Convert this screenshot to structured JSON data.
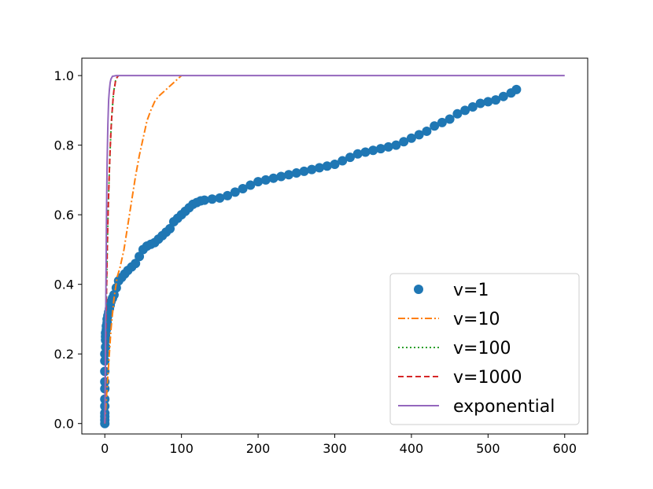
{
  "chart_data": {
    "type": "scatter",
    "title": "",
    "xlabel": "",
    "ylabel": "",
    "xlim": [
      -30,
      630
    ],
    "ylim": [
      -0.03,
      1.05
    ],
    "xticks": [
      0,
      100,
      200,
      300,
      400,
      500,
      600
    ],
    "xtick_labels": [
      "0",
      "100",
      "200",
      "300",
      "400",
      "500",
      "600"
    ],
    "yticks": [
      0.0,
      0.2,
      0.4,
      0.6,
      0.8,
      1.0
    ],
    "ytick_labels": [
      "0.0",
      "0.2",
      "0.4",
      "0.6",
      "0.8",
      "1.0"
    ],
    "grid": false,
    "legend_position": "lower-right",
    "series": [
      {
        "name": "v=1",
        "kind": "markers",
        "color": "#1f77b4",
        "x": [
          0,
          0,
          0,
          0,
          0,
          0,
          0,
          0,
          0,
          0,
          0,
          1,
          1,
          1,
          1,
          2,
          2,
          3,
          3,
          4,
          5,
          6,
          7,
          8,
          10,
          12,
          15,
          18,
          22,
          26,
          30,
          35,
          40,
          45,
          50,
          55,
          60,
          65,
          70,
          75,
          80,
          85,
          90,
          95,
          100,
          105,
          110,
          115,
          120,
          125,
          130,
          140,
          150,
          160,
          170,
          180,
          190,
          200,
          210,
          220,
          230,
          240,
          250,
          260,
          270,
          280,
          290,
          300,
          310,
          320,
          330,
          340,
          350,
          360,
          370,
          380,
          390,
          400,
          410,
          420,
          430,
          440,
          450,
          460,
          470,
          480,
          490,
          500,
          510,
          520,
          530,
          537
        ],
        "y": [
          0.0,
          0.01,
          0.02,
          0.03,
          0.05,
          0.07,
          0.1,
          0.12,
          0.15,
          0.18,
          0.2,
          0.22,
          0.24,
          0.25,
          0.26,
          0.27,
          0.28,
          0.29,
          0.3,
          0.31,
          0.32,
          0.33,
          0.34,
          0.35,
          0.36,
          0.37,
          0.39,
          0.41,
          0.42,
          0.43,
          0.44,
          0.45,
          0.46,
          0.48,
          0.5,
          0.51,
          0.515,
          0.52,
          0.53,
          0.54,
          0.55,
          0.56,
          0.58,
          0.59,
          0.6,
          0.61,
          0.62,
          0.63,
          0.635,
          0.64,
          0.642,
          0.645,
          0.648,
          0.655,
          0.665,
          0.675,
          0.685,
          0.695,
          0.7,
          0.705,
          0.71,
          0.715,
          0.72,
          0.725,
          0.73,
          0.735,
          0.74,
          0.745,
          0.755,
          0.765,
          0.775,
          0.78,
          0.785,
          0.79,
          0.795,
          0.8,
          0.81,
          0.82,
          0.83,
          0.84,
          0.855,
          0.865,
          0.875,
          0.89,
          0.9,
          0.91,
          0.92,
          0.925,
          0.93,
          0.94,
          0.95,
          0.96
        ]
      },
      {
        "name": "v=10",
        "kind": "dashdot",
        "color": "#ff7f0e",
        "x": [
          0,
          2,
          5,
          8,
          12,
          16,
          20,
          25,
          30,
          35,
          40,
          45,
          50,
          55,
          60,
          65,
          70,
          75,
          80,
          85,
          90,
          95,
          100
        ],
        "y": [
          0.0,
          0.07,
          0.17,
          0.27,
          0.36,
          0.42,
          0.45,
          0.5,
          0.57,
          0.64,
          0.71,
          0.77,
          0.82,
          0.87,
          0.9,
          0.925,
          0.94,
          0.95,
          0.96,
          0.97,
          0.98,
          0.99,
          1.0
        ]
      },
      {
        "name": "v=100",
        "kind": "dotted",
        "color": "#2ca02c",
        "x": [
          0,
          1,
          2,
          3,
          4,
          5,
          6,
          7,
          8,
          9,
          10,
          11,
          12,
          13,
          14,
          16,
          18
        ],
        "y": [
          0.0,
          0.2,
          0.35,
          0.48,
          0.58,
          0.66,
          0.73,
          0.79,
          0.84,
          0.88,
          0.91,
          0.94,
          0.96,
          0.97,
          0.985,
          0.995,
          1.0
        ]
      },
      {
        "name": "v=1000",
        "kind": "dashed",
        "color": "#d62728",
        "x": [
          0,
          1,
          2,
          3,
          4,
          5,
          6,
          7,
          8,
          9,
          10,
          11,
          12,
          13,
          14,
          16,
          18
        ],
        "y": [
          0.0,
          0.2,
          0.35,
          0.48,
          0.58,
          0.66,
          0.73,
          0.79,
          0.84,
          0.88,
          0.91,
          0.94,
          0.96,
          0.97,
          0.985,
          0.995,
          1.0
        ]
      },
      {
        "name": "exponential",
        "kind": "solid",
        "color": "#9467bd",
        "x": [
          0,
          0.5,
          1,
          1.5,
          2,
          2.5,
          3,
          4,
          5,
          6,
          7,
          8,
          10,
          15,
          20,
          100,
          200,
          300,
          400,
          500,
          600
        ],
        "y": [
          0.0,
          0.1,
          0.25,
          0.4,
          0.55,
          0.66,
          0.75,
          0.86,
          0.93,
          0.96,
          0.98,
          0.99,
          0.998,
          1.0,
          1.0,
          1.0,
          1.0,
          1.0,
          1.0,
          1.0,
          1.0
        ]
      }
    ]
  }
}
